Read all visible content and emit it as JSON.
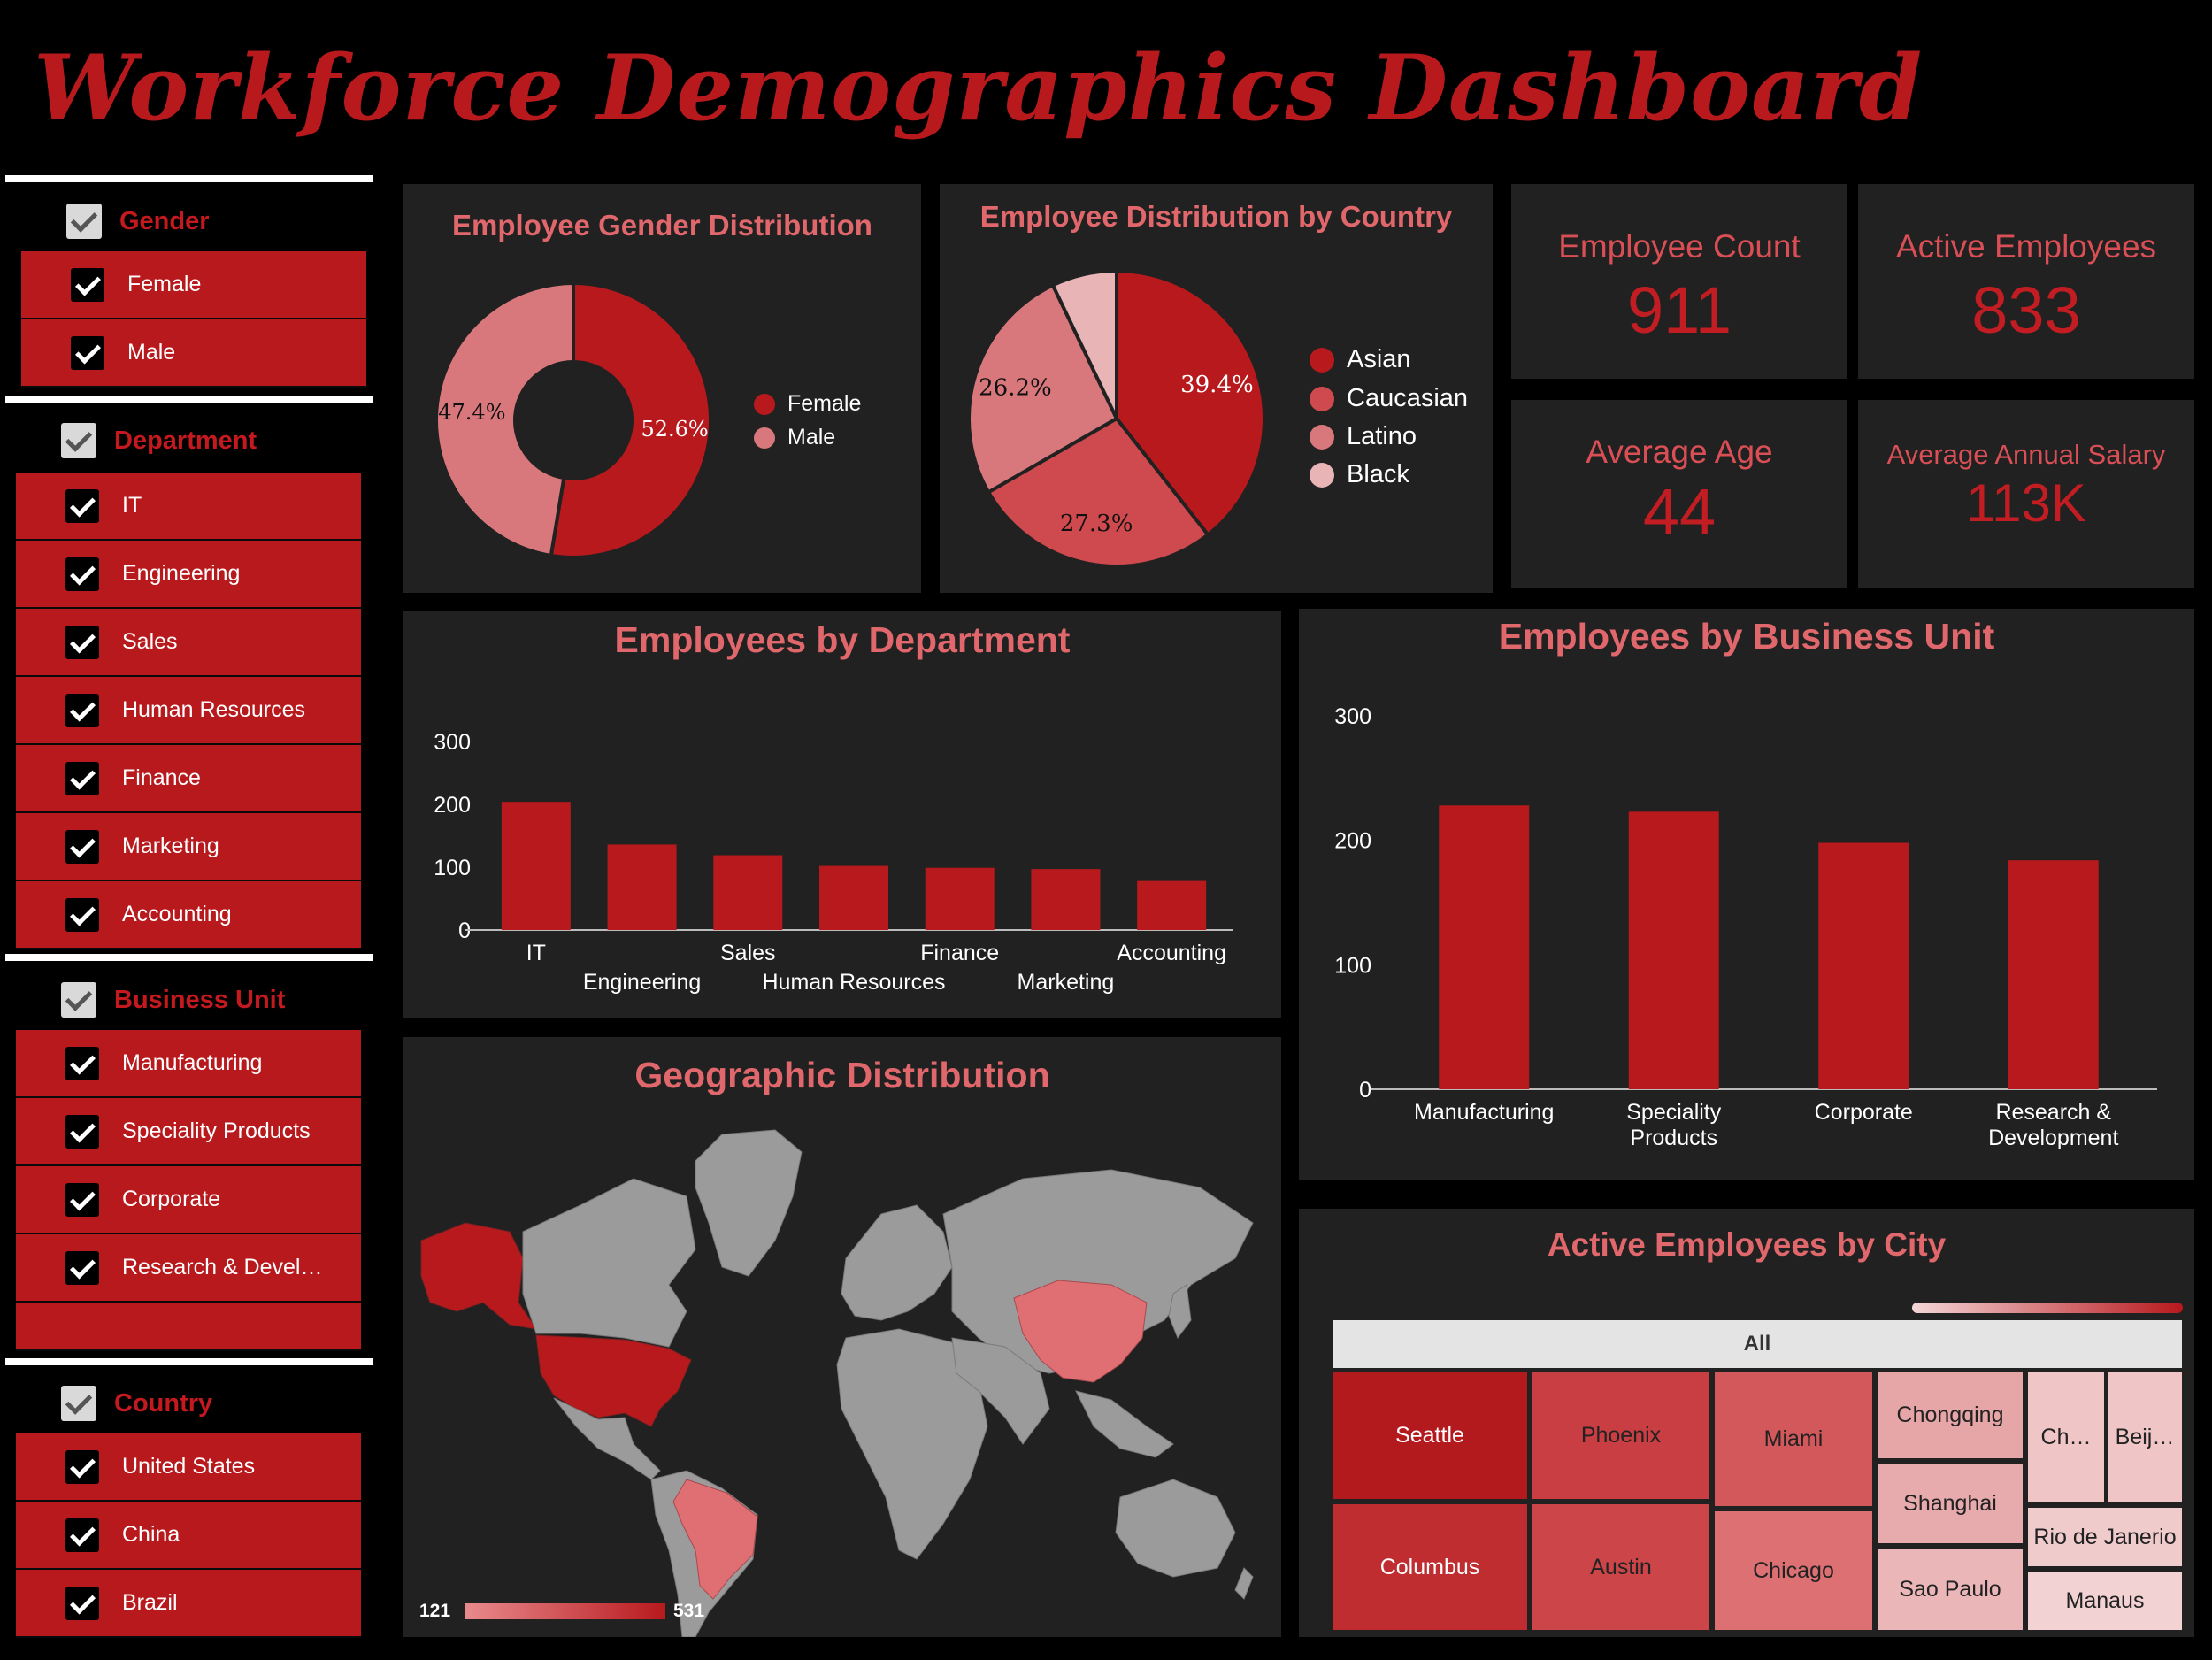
{
  "header": {
    "title": "Workforce Demographics Dashboard"
  },
  "slicers": {
    "gender": {
      "label": "Gender",
      "items": [
        "Female",
        "Male"
      ]
    },
    "department": {
      "label": "Department",
      "items": [
        "IT",
        "Engineering",
        "Sales",
        "Human Resources",
        "Finance",
        "Marketing",
        "Accounting"
      ]
    },
    "business_unit": {
      "label": "Business Unit",
      "items": [
        "Manufacturing",
        "Speciality Products",
        "Corporate",
        "Research & Devel…"
      ]
    },
    "country": {
      "label": "Country",
      "items": [
        "United States",
        "China",
        "Brazil"
      ]
    }
  },
  "kpis": {
    "employee_count": {
      "label": "Employee Count",
      "value": "911"
    },
    "active_employees": {
      "label": "Active Employees",
      "value": "833"
    },
    "average_age": {
      "label": "Average Age",
      "value": "44"
    },
    "average_salary": {
      "label": "Average Annual Salary",
      "value": "113K"
    }
  },
  "gender_chart": {
    "title": "Employee Gender Distribution",
    "chart_data": {
      "type": "pie",
      "variant": "donut",
      "labels": [
        "Female",
        "Male"
      ],
      "values": [
        52.6,
        47.4
      ],
      "value_labels": [
        "52.6%",
        "47.4%"
      ],
      "colors": [
        "#b8191d",
        "#d9787c"
      ],
      "legend": "right"
    }
  },
  "country_chart": {
    "title": "Employee Distribution by Country",
    "chart_data": {
      "type": "pie",
      "labels": [
        "Asian",
        "Caucasian",
        "Latino",
        "Black"
      ],
      "values": [
        39.4,
        27.3,
        26.2,
        7.1
      ],
      "value_labels": [
        "39.4%",
        "27.3%",
        "26.2%",
        ""
      ],
      "colors": [
        "#b8191d",
        "#cf4a4e",
        "#d9787c",
        "#e8b4b6"
      ],
      "legend": "right"
    }
  },
  "dept_chart": {
    "title": "Employees by Department",
    "chart_data": {
      "type": "bar",
      "categories": [
        "IT",
        "Engineering",
        "Sales",
        "Human Resources",
        "Finance",
        "Marketing",
        "Accounting"
      ],
      "values": [
        204,
        136,
        119,
        102,
        99,
        97,
        78
      ],
      "yticks": [
        "0",
        "100",
        "200",
        "300"
      ],
      "ylim": [
        0,
        300
      ],
      "color": "#b8191d"
    }
  },
  "bu_chart": {
    "title": "Employees by Business Unit",
    "chart_data": {
      "type": "bar",
      "categories": [
        "Manufacturing",
        "Speciality Products",
        "Corporate",
        "Research & Development"
      ],
      "category_lines": [
        [
          "Manufacturing"
        ],
        [
          "Speciality",
          "Products"
        ],
        [
          "Corporate"
        ],
        [
          "Research &",
          "Development"
        ]
      ],
      "values": [
        228,
        223,
        198,
        184
      ],
      "yticks": [
        "0",
        "100",
        "200",
        "300"
      ],
      "ylim": [
        0,
        300
      ],
      "color": "#b8191d"
    }
  },
  "geo_map": {
    "title": "Geographic Distribution",
    "legend_min": "121",
    "legend_max": "531"
  },
  "city_treemap": {
    "title": "Active Employees by City",
    "header": "All",
    "cells": [
      {
        "name": "Seattle",
        "color": "#b31a1e"
      },
      {
        "name": "Columbus",
        "color": "#c02d31"
      },
      {
        "name": "Phoenix",
        "color": "#c93e42"
      },
      {
        "name": "Austin",
        "color": "#cc4549"
      },
      {
        "name": "Miami",
        "color": "#d3585b"
      },
      {
        "name": "Chicago",
        "color": "#dc7073"
      },
      {
        "name": "Chongqing",
        "color": "#e6a5a7"
      },
      {
        "name": "Shanghai",
        "color": "#e8abad"
      },
      {
        "name": "Sao Paulo",
        "color": "#ebb6b8"
      },
      {
        "name": "Ch…",
        "color": "#efc5c6"
      },
      {
        "name": "Beij…",
        "color": "#efc5c6"
      },
      {
        "name": "Rio de Janerio",
        "color": "#f0cbcc"
      },
      {
        "name": "Manaus",
        "color": "#f2d2d3"
      }
    ]
  }
}
